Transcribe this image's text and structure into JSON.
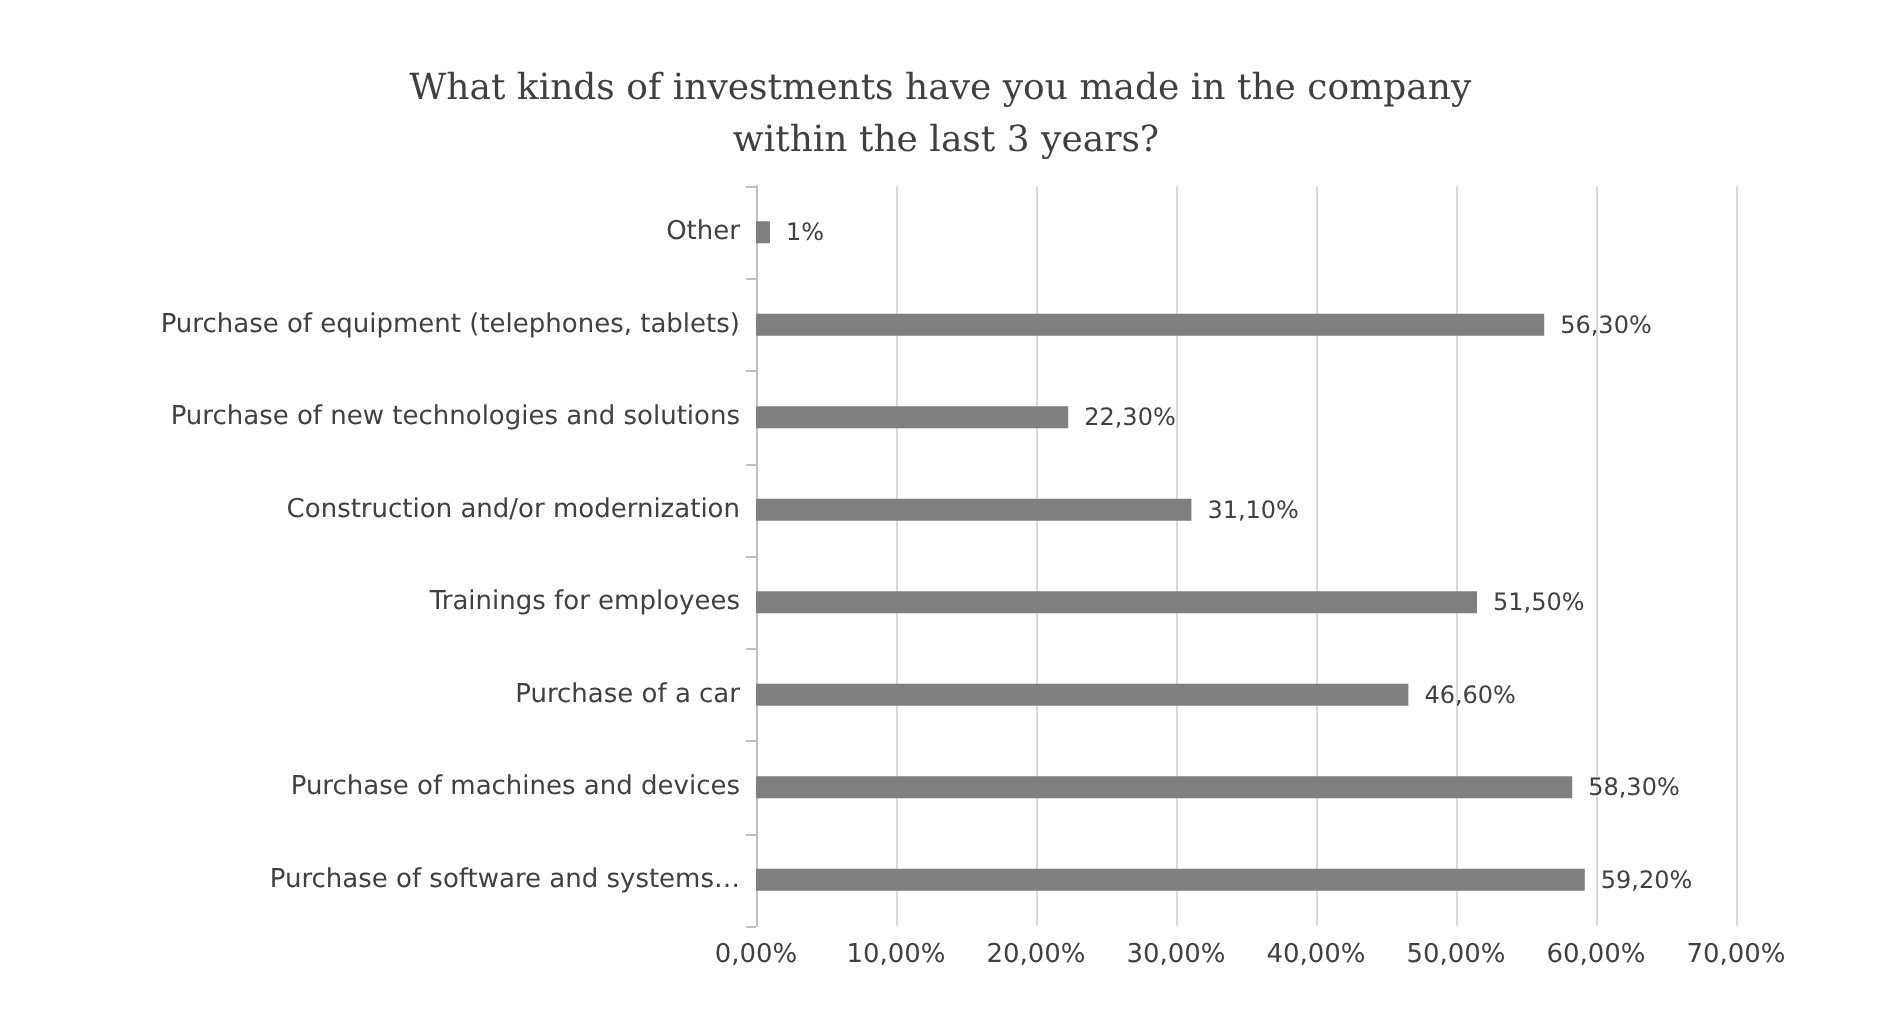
{
  "chart_data": {
    "type": "bar",
    "orientation": "horizontal",
    "title": "What kinds of investments have you made in the company within the last 3 years?",
    "categories": [
      "Other",
      "Purchase of equipment (telephones, tablets)",
      "Purchase of new technologies and solutions",
      "Construction and/or modernization",
      "Trainings for employees",
      "Purchase of a car",
      "Purchase of machines and devices",
      "Purchase of software and systems…"
    ],
    "values": [
      1,
      56.3,
      22.3,
      31.1,
      51.5,
      46.6,
      58.3,
      59.2
    ],
    "value_labels": [
      "1%",
      "56,30%",
      "22,30%",
      "31,10%",
      "51,50%",
      "46,60%",
      "58,30%",
      "59,20%"
    ],
    "color": "#7f7f7f",
    "xlim": [
      0,
      70
    ],
    "xticks": [
      {
        "value": 0,
        "label": "0,00%"
      },
      {
        "value": 10,
        "label": "10,00%"
      },
      {
        "value": 20,
        "label": "20,00%"
      },
      {
        "value": 30,
        "label": "30,00%"
      },
      {
        "value": 40,
        "label": "40,00%"
      },
      {
        "value": 50,
        "label": "50,00%"
      },
      {
        "value": 60,
        "label": "60,00%"
      },
      {
        "value": 70,
        "label": "70,00%"
      }
    ],
    "grid": "x"
  }
}
